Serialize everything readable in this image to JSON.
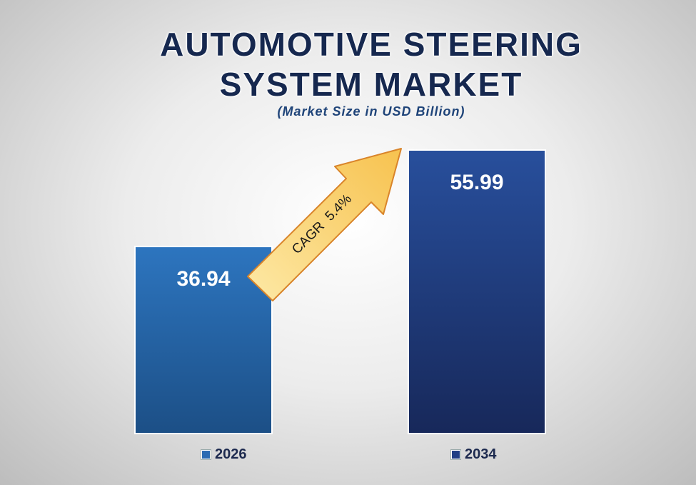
{
  "chart_data": {
    "type": "bar",
    "title_line1": "AUTOMOTIVE STEERING",
    "title_line2": "SYSTEM MARKET",
    "subtitle": "(Market Size in USD Billion)",
    "categories": [
      "2026",
      "2034"
    ],
    "values": [
      36.94,
      55.99
    ],
    "value_labels": [
      "36.94",
      "55.99"
    ],
    "colors": [
      "#2a6bb3",
      "#203f86"
    ],
    "annotation": "CAGR  5.4%",
    "legend": [
      "2026",
      "2034"
    ],
    "legend_position": "bottom",
    "grid": false
  }
}
